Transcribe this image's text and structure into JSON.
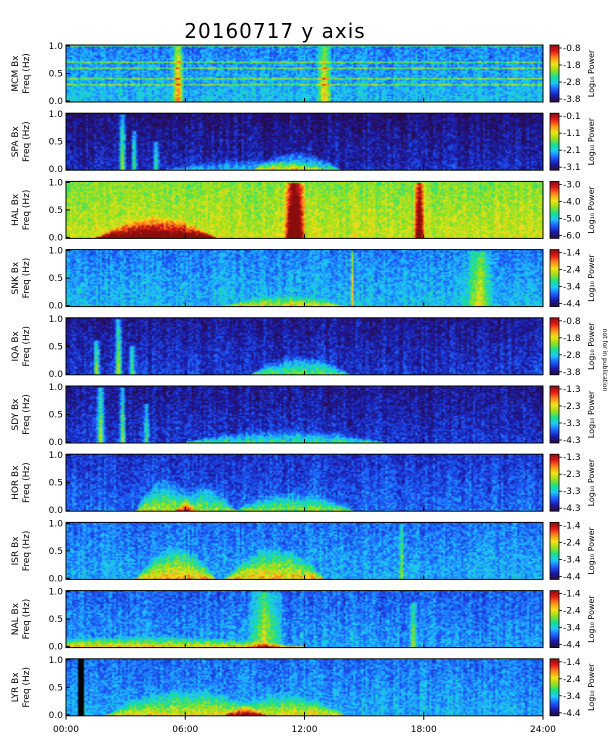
{
  "page": {
    "background": "#ffffff"
  },
  "figure": {
    "title": "20160717 y axis",
    "right_vertical_note": "not for in publication"
  },
  "chart_data": {
    "type": "heatmap",
    "title": "20160717 y axis",
    "xlim": [
      0,
      24
    ],
    "x_tick_labels": [
      "00:00",
      "06:00",
      "12:00",
      "18:00",
      "24:00"
    ],
    "x_tick_values": [
      0,
      6,
      12,
      18,
      24
    ],
    "ylim": [
      0,
      1.0
    ],
    "y_tick_labels": [
      "0.0",
      "0.5",
      "1.0"
    ],
    "colorbar_label": "Log₁₀ Power",
    "colormap": [
      "#2b0a3d",
      "#1a1aa8",
      "#1e5cff",
      "#1fc7ff",
      "#18e08a",
      "#9be01a",
      "#f2e21a",
      "#ff8a1a",
      "#e01a1a",
      "#8a0d0d"
    ],
    "panels": [
      {
        "station": "MCM",
        "component": "Bx",
        "ylabel_line1": "MCM Bx",
        "ylabel_line2": "Freq (Hz)",
        "colorbar_ticks": [
          "-0.8",
          "-1.8",
          "-2.8",
          "-3.8"
        ],
        "background_level": 0.22,
        "features": [
          {
            "type": "harmonic_lines",
            "count": 10,
            "level": 0.45
          },
          {
            "type": "burst",
            "t": 5.6,
            "width": 0.3,
            "fmax": 1.0,
            "level": 0.55
          },
          {
            "type": "burst",
            "t": 13.0,
            "width": 0.4,
            "fmax": 1.0,
            "level": 0.4
          }
        ]
      },
      {
        "station": "SPA",
        "component": "Bx",
        "ylabel_line1": "SPA Bx",
        "ylabel_line2": "Freq (Hz)",
        "colorbar_ticks": [
          "-0.1",
          "-1.1",
          "-2.1",
          "-3.1"
        ],
        "background_level": 0.02,
        "features": [
          {
            "type": "burst",
            "t": 2.8,
            "width": 0.2,
            "fmax": 1.0,
            "level": 0.5
          },
          {
            "type": "burst",
            "t": 3.4,
            "width": 0.15,
            "fmax": 0.7,
            "level": 0.45
          },
          {
            "type": "burst",
            "t": 4.5,
            "width": 0.2,
            "fmax": 0.5,
            "level": 0.4
          },
          {
            "type": "hump",
            "t": 11.6,
            "width": 2.2,
            "fmax": 0.35,
            "level": 0.45
          },
          {
            "type": "hump",
            "t": 9.0,
            "width": 4.0,
            "fmax": 0.2,
            "level": 0.25
          }
        ]
      },
      {
        "station": "HAL",
        "component": "Bx",
        "ylabel_line1": "HAL Bx",
        "ylabel_line2": "Freq (Hz)",
        "colorbar_ticks": [
          "-3.0",
          "-4.0",
          "-5.0",
          "-6.0"
        ],
        "background_level": 0.5,
        "features": [
          {
            "type": "burst",
            "t": 11.5,
            "width": 0.6,
            "fmax": 1.0,
            "level": 0.85
          },
          {
            "type": "burst",
            "t": 17.8,
            "width": 0.3,
            "fmax": 1.0,
            "level": 0.7
          },
          {
            "type": "hump",
            "t": 4.5,
            "width": 3.0,
            "fmax": 0.4,
            "level": 0.7
          }
        ]
      },
      {
        "station": "SNK",
        "component": "Bx",
        "ylabel_line1": "SNK Bx",
        "ylabel_line2": "Freq (Hz)",
        "colorbar_ticks": [
          "-1.4",
          "-2.4",
          "-3.4",
          "-4.4"
        ],
        "background_level": 0.22,
        "features": [
          {
            "type": "burst",
            "t": 14.4,
            "width": 0.08,
            "fmax": 1.0,
            "level": 0.55
          },
          {
            "type": "burst",
            "t": 20.8,
            "width": 0.8,
            "fmax": 1.0,
            "level": 0.35
          },
          {
            "type": "hump",
            "t": 11.0,
            "width": 3.0,
            "fmax": 0.2,
            "level": 0.4
          }
        ]
      },
      {
        "station": "IQA",
        "component": "Bx",
        "ylabel_line1": "IQA Bx",
        "ylabel_line2": "Freq (Hz)",
        "colorbar_ticks": [
          "-0.8",
          "-1.8",
          "-2.8",
          "-3.8"
        ],
        "background_level": 0.05,
        "features": [
          {
            "type": "burst",
            "t": 1.5,
            "width": 0.2,
            "fmax": 0.6,
            "level": 0.45
          },
          {
            "type": "burst",
            "t": 2.6,
            "width": 0.2,
            "fmax": 1.0,
            "level": 0.5
          },
          {
            "type": "burst",
            "t": 3.3,
            "width": 0.2,
            "fmax": 0.5,
            "level": 0.4
          },
          {
            "type": "hump",
            "t": 11.8,
            "width": 2.5,
            "fmax": 0.35,
            "level": 0.45
          }
        ]
      },
      {
        "station": "SDY",
        "component": "Bx",
        "ylabel_line1": "SDY Bx",
        "ylabel_line2": "Freq (Hz)",
        "colorbar_ticks": [
          "-1.3",
          "-2.3",
          "-3.3",
          "-4.3"
        ],
        "background_level": 0.05,
        "features": [
          {
            "type": "burst",
            "t": 1.7,
            "width": 0.25,
            "fmax": 1.0,
            "level": 0.5
          },
          {
            "type": "burst",
            "t": 2.8,
            "width": 0.2,
            "fmax": 1.0,
            "level": 0.45
          },
          {
            "type": "burst",
            "t": 4.0,
            "width": 0.2,
            "fmax": 0.7,
            "level": 0.35
          },
          {
            "type": "hump",
            "t": 11.0,
            "width": 5.0,
            "fmax": 0.25,
            "level": 0.35
          }
        ]
      },
      {
        "station": "HOR",
        "component": "Bx",
        "ylabel_line1": "HOR Bx",
        "ylabel_line2": "Freq (Hz)",
        "colorbar_ticks": [
          "-1.3",
          "-2.3",
          "-3.3",
          "-4.3"
        ],
        "background_level": 0.12,
        "features": [
          {
            "type": "hump",
            "t": 5.0,
            "width": 1.5,
            "fmax": 0.6,
            "level": 0.45
          },
          {
            "type": "hump",
            "t": 7.0,
            "width": 1.5,
            "fmax": 0.5,
            "level": 0.4
          },
          {
            "type": "hump",
            "t": 11.5,
            "width": 3.0,
            "fmax": 0.35,
            "level": 0.4
          }
        ]
      },
      {
        "station": "ISR",
        "component": "Bx",
        "ylabel_line1": "ISR Bx",
        "ylabel_line2": "Freq (Hz)",
        "colorbar_ticks": [
          "-1.4",
          "-2.4",
          "-3.4",
          "-4.4"
        ],
        "background_level": 0.2,
        "features": [
          {
            "type": "hump",
            "t": 5.5,
            "width": 2.0,
            "fmax": 0.6,
            "level": 0.5
          },
          {
            "type": "hump",
            "t": 10.5,
            "width": 2.5,
            "fmax": 0.6,
            "level": 0.5
          },
          {
            "type": "burst",
            "t": 16.9,
            "width": 0.1,
            "fmax": 1.0,
            "level": 0.5
          }
        ]
      },
      {
        "station": "NAL",
        "component": "Bx",
        "ylabel_line1": "NAL Bx",
        "ylabel_line2": "Freq (Hz)",
        "colorbar_ticks": [
          "-1.4",
          "-2.4",
          "-3.4",
          "-4.4"
        ],
        "background_level": 0.18,
        "features": [
          {
            "type": "hump",
            "t": 4.0,
            "width": 8.0,
            "fmax": 0.2,
            "level": 0.5
          },
          {
            "type": "burst",
            "t": 10.0,
            "width": 1.0,
            "fmax": 1.0,
            "level": 0.35
          },
          {
            "type": "burst",
            "t": 17.5,
            "width": 0.2,
            "fmax": 0.8,
            "level": 0.35
          }
        ]
      },
      {
        "station": "LYR",
        "component": "Bx",
        "ylabel_line1": "LYR Bx",
        "ylabel_line2": "Freq (Hz)",
        "colorbar_ticks": [
          "-1.4",
          "-2.4",
          "-3.4",
          "-4.4"
        ],
        "background_level": 0.2,
        "features": [
          {
            "type": "gap",
            "t": 0.7,
            "width": 0.25
          },
          {
            "type": "hump",
            "t": 6.0,
            "width": 4.0,
            "fmax": 0.5,
            "level": 0.45
          },
          {
            "type": "hump",
            "t": 11.0,
            "width": 3.0,
            "fmax": 0.4,
            "level": 0.45
          }
        ]
      }
    ]
  }
}
